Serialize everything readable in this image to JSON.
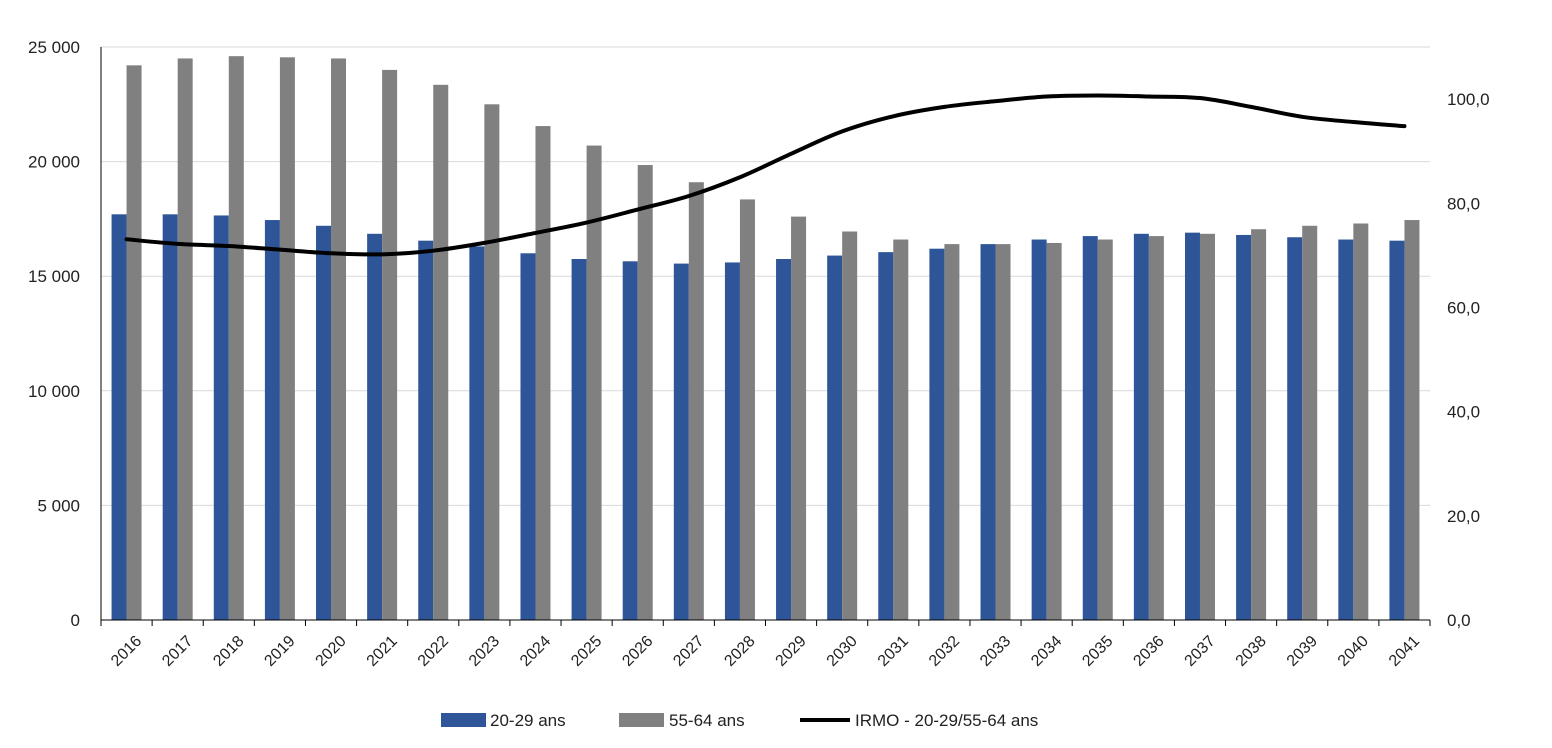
{
  "chart_data": {
    "type": "bar",
    "categories": [
      "2016",
      "2017",
      "2018",
      "2019",
      "2020",
      "2021",
      "2022",
      "2023",
      "2024",
      "2025",
      "2026",
      "2027",
      "2028",
      "2029",
      "2030",
      "2031",
      "2032",
      "2033",
      "2034",
      "2035",
      "2036",
      "2037",
      "2038",
      "2039",
      "2040",
      "2041"
    ],
    "series": [
      {
        "name": "20-29 ans",
        "type": "bar",
        "axis": "left",
        "color": "#2e5597",
        "values": [
          17700,
          17700,
          17650,
          17450,
          17200,
          16850,
          16550,
          16300,
          16000,
          15750,
          15650,
          15550,
          15600,
          15750,
          15900,
          16050,
          16200,
          16400,
          16600,
          16750,
          16850,
          16900,
          16800,
          16700,
          16600,
          16550
        ]
      },
      {
        "name": "55-64 ans",
        "type": "bar",
        "axis": "left",
        "color": "#808080",
        "values": [
          24200,
          24500,
          24600,
          24550,
          24500,
          24000,
          23350,
          22500,
          21550,
          20700,
          19850,
          19100,
          18350,
          17600,
          16950,
          16600,
          16400,
          16400,
          16450,
          16600,
          16750,
          16850,
          17050,
          17200,
          17300,
          17450
        ]
      },
      {
        "name": "IRMO - 20-29/55-64 ans",
        "type": "line",
        "axis": "right",
        "color": "#000000",
        "values": [
          73.1,
          72.2,
          71.8,
          71.1,
          70.4,
          70.2,
          70.9,
          72.4,
          74.3,
          76.3,
          78.8,
          81.4,
          85.0,
          89.5,
          93.8,
          96.7,
          98.5,
          99.6,
          100.5,
          100.7,
          100.5,
          100.2,
          98.5,
          96.6,
          95.6,
          94.8
        ]
      }
    ],
    "y_left": {
      "min": 0,
      "max": 25000,
      "ticks": [
        "0",
        "5 000",
        "10 000",
        "15 000",
        "20 000",
        "25 000"
      ]
    },
    "y_right": {
      "min": 0,
      "max": 110,
      "ticks": [
        "0,0",
        "20,0",
        "40,0",
        "60,0",
        "80,0",
        "100,0"
      ]
    },
    "grid": true,
    "legend_position": "bottom"
  }
}
